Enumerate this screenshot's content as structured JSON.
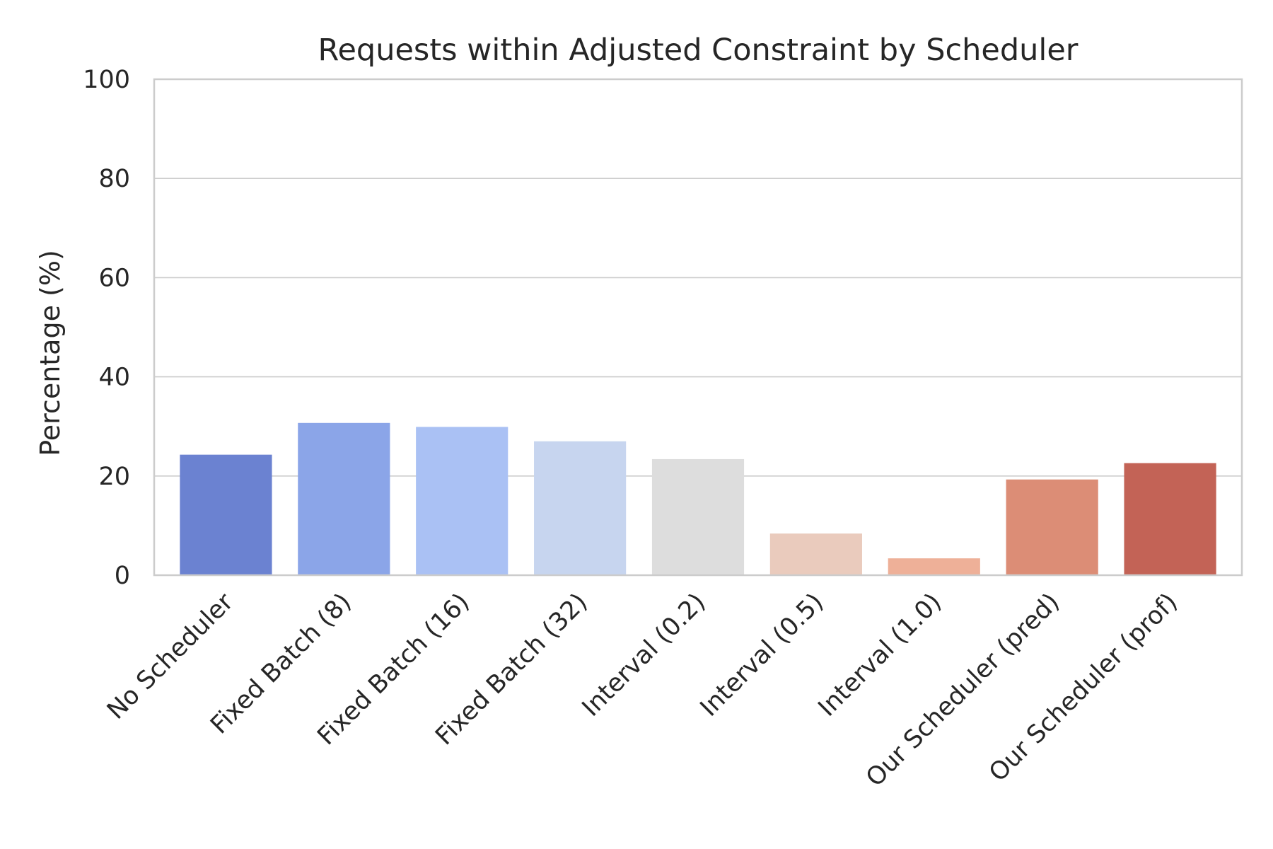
{
  "chart_data": {
    "type": "bar",
    "title": "Requests within Adjusted Constraint by Scheduler",
    "xlabel": "",
    "ylabel": "Percentage (%)",
    "ylim": [
      0,
      100
    ],
    "yticks": [
      0,
      20,
      40,
      60,
      80,
      100
    ],
    "grid": "horizontal",
    "categories": [
      "No Scheduler",
      "Fixed Batch (8)",
      "Fixed Batch (16)",
      "Fixed Batch (32)",
      "Interval (0.2)",
      "Interval (0.5)",
      "Interval (1.0)",
      "Our Scheduler (pred)",
      "Our Scheduler (prof)"
    ],
    "values": [
      24.3,
      30.7,
      29.9,
      27.0,
      23.4,
      8.4,
      3.4,
      19.3,
      22.6
    ],
    "colors": [
      "#6b82d1",
      "#8ba5e8",
      "#aac1f4",
      "#c7d5ef",
      "#dddddd",
      "#eacbbd",
      "#eeb098",
      "#dc8d76",
      "#c36356"
    ]
  }
}
